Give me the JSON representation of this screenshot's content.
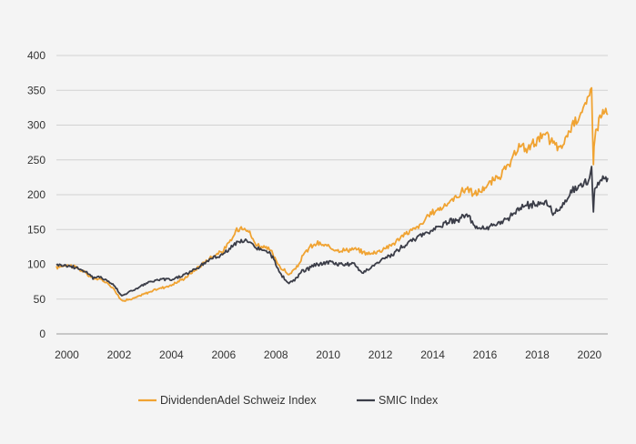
{
  "chart_data": {
    "type": "line",
    "title": "",
    "xlabel": "",
    "ylabel": "",
    "xlim": [
      1999.6,
      2020.7
    ],
    "ylim": [
      0,
      400
    ],
    "grid": true,
    "legend_position": "bottom",
    "y_ticks": [
      0,
      50,
      100,
      150,
      200,
      250,
      300,
      350,
      400
    ],
    "y_tick_labels": [
      "0",
      "50",
      "100",
      "150",
      "200",
      "250",
      "300",
      "350",
      "400"
    ],
    "x_ticks": [
      2000,
      2002,
      2004,
      2006,
      2008,
      2010,
      2012,
      2014,
      2016,
      2018,
      2020
    ],
    "x_tick_labels": [
      "2000",
      "2002",
      "2004",
      "2006",
      "2008",
      "2010",
      "2012",
      "2014",
      "2016",
      "2018",
      "2020"
    ],
    "series": [
      {
        "name": "DividendenAdel Schweiz Index",
        "color": "#f0a332",
        "x": [
          1999.6,
          2000.0,
          2000.4,
          2000.8,
          2001.0,
          2001.3,
          2001.6,
          2001.8,
          2002.0,
          2002.1,
          2002.5,
          2003.0,
          2003.5,
          2004.0,
          2004.5,
          2005.0,
          2005.5,
          2006.0,
          2006.3,
          2006.5,
          2006.8,
          2007.0,
          2007.2,
          2007.5,
          2007.8,
          2008.0,
          2008.2,
          2008.5,
          2008.8,
          2009.0,
          2009.3,
          2009.6,
          2010.0,
          2010.5,
          2011.0,
          2011.3,
          2011.6,
          2012.0,
          2012.5,
          2013.0,
          2013.5,
          2014.0,
          2014.5,
          2015.0,
          2015.3,
          2015.6,
          2016.0,
          2016.5,
          2017.0,
          2017.3,
          2017.6,
          2018.0,
          2018.3,
          2018.6,
          2018.9,
          2019.2,
          2019.5,
          2019.8,
          2020.0,
          2020.08,
          2020.15,
          2020.2,
          2020.4,
          2020.55,
          2020.7
        ],
        "values": [
          95,
          100,
          95,
          85,
          80,
          78,
          72,
          65,
          52,
          48,
          50,
          58,
          65,
          70,
          80,
          95,
          110,
          120,
          135,
          150,
          155,
          145,
          130,
          125,
          120,
          105,
          95,
          85,
          95,
          110,
          125,
          130,
          125,
          120,
          122,
          118,
          115,
          120,
          130,
          145,
          155,
          175,
          185,
          200,
          210,
          200,
          210,
          225,
          245,
          270,
          265,
          280,
          285,
          275,
          265,
          290,
          310,
          325,
          340,
          355,
          250,
          285,
          310,
          320,
          315
        ]
      },
      {
        "name": "SMIC Index",
        "color": "#3b3d48",
        "x": [
          1999.6,
          2000.0,
          2000.4,
          2000.8,
          2001.0,
          2001.3,
          2001.6,
          2001.8,
          2002.0,
          2002.1,
          2002.5,
          2003.0,
          2003.5,
          2004.0,
          2004.5,
          2005.0,
          2005.5,
          2006.0,
          2006.3,
          2006.5,
          2006.8,
          2007.0,
          2007.2,
          2007.5,
          2007.8,
          2008.0,
          2008.2,
          2008.5,
          2008.8,
          2009.0,
          2009.3,
          2009.6,
          2010.0,
          2010.5,
          2011.0,
          2011.3,
          2011.6,
          2012.0,
          2012.5,
          2013.0,
          2013.5,
          2014.0,
          2014.5,
          2015.0,
          2015.3,
          2015.6,
          2016.0,
          2016.5,
          2017.0,
          2017.3,
          2017.6,
          2018.0,
          2018.3,
          2018.6,
          2018.9,
          2019.2,
          2019.5,
          2019.8,
          2020.0,
          2020.08,
          2020.15,
          2020.2,
          2020.4,
          2020.55,
          2020.7
        ],
        "values": [
          100,
          98,
          95,
          88,
          80,
          82,
          75,
          70,
          60,
          55,
          62,
          72,
          78,
          78,
          85,
          95,
          108,
          115,
          125,
          130,
          135,
          130,
          125,
          120,
          115,
          100,
          85,
          72,
          80,
          90,
          95,
          100,
          103,
          100,
          100,
          88,
          95,
          105,
          115,
          130,
          140,
          150,
          160,
          165,
          172,
          155,
          150,
          158,
          170,
          180,
          185,
          185,
          190,
          175,
          180,
          200,
          210,
          215,
          225,
          235,
          175,
          205,
          218,
          222,
          224
        ]
      }
    ]
  }
}
